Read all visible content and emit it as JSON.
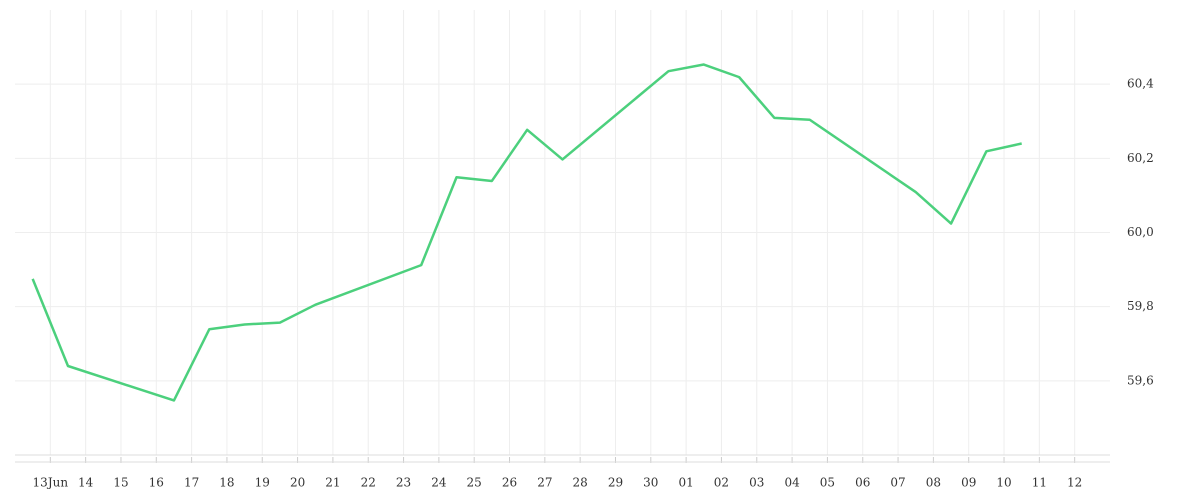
{
  "chart_data": {
    "type": "line",
    "color": "#4cd07d",
    "grid": true,
    "x": [
      -0.5,
      0.5,
      3.5,
      4.5,
      5.5,
      6.5,
      7.5,
      10.5,
      11.5,
      12.5,
      13.5,
      14.5,
      17.5,
      18.5,
      19.5,
      20.5,
      21.5,
      24.5,
      25.5,
      26.5,
      27.5
    ],
    "values": [
      59.875,
      59.64,
      59.547,
      59.739,
      59.752,
      59.757,
      59.805,
      59.912,
      60.149,
      60.139,
      60.277,
      60.197,
      60.435,
      60.453,
      60.419,
      60.309,
      60.304,
      60.109,
      60.024,
      60.219,
      60.24
    ],
    "xlim": [
      -1,
      30
    ],
    "xticks": [
      {
        "value": 0,
        "label": "13Jun"
      },
      {
        "value": 1,
        "label": "14"
      },
      {
        "value": 2,
        "label": "15"
      },
      {
        "value": 3,
        "label": "16"
      },
      {
        "value": 4,
        "label": "17"
      },
      {
        "value": 5,
        "label": "18"
      },
      {
        "value": 6,
        "label": "19"
      },
      {
        "value": 7,
        "label": "20"
      },
      {
        "value": 8,
        "label": "21"
      },
      {
        "value": 9,
        "label": "22"
      },
      {
        "value": 10,
        "label": "23"
      },
      {
        "value": 11,
        "label": "24"
      },
      {
        "value": 12,
        "label": "25"
      },
      {
        "value": 13,
        "label": "26"
      },
      {
        "value": 14,
        "label": "27"
      },
      {
        "value": 15,
        "label": "28"
      },
      {
        "value": 16,
        "label": "29"
      },
      {
        "value": 17,
        "label": "30"
      },
      {
        "value": 18,
        "label": "01"
      },
      {
        "value": 19,
        "label": "02"
      },
      {
        "value": 20,
        "label": "03"
      },
      {
        "value": 21,
        "label": "04"
      },
      {
        "value": 22,
        "label": "05"
      },
      {
        "value": 23,
        "label": "06"
      },
      {
        "value": 24,
        "label": "07"
      },
      {
        "value": 25,
        "label": "08"
      },
      {
        "value": 26,
        "label": "09"
      },
      {
        "value": 27,
        "label": "10"
      },
      {
        "value": 28,
        "label": "11"
      },
      {
        "value": 29,
        "label": "12"
      }
    ],
    "ylim": [
      59.4,
      60.6
    ],
    "yticks": [
      {
        "value": 59.6,
        "label": "59,6"
      },
      {
        "value": 59.8,
        "label": "59,8"
      },
      {
        "value": 60.0,
        "label": "60,0"
      },
      {
        "value": 60.2,
        "label": "60,2"
      },
      {
        "value": 60.4,
        "label": "60,4"
      }
    ]
  }
}
